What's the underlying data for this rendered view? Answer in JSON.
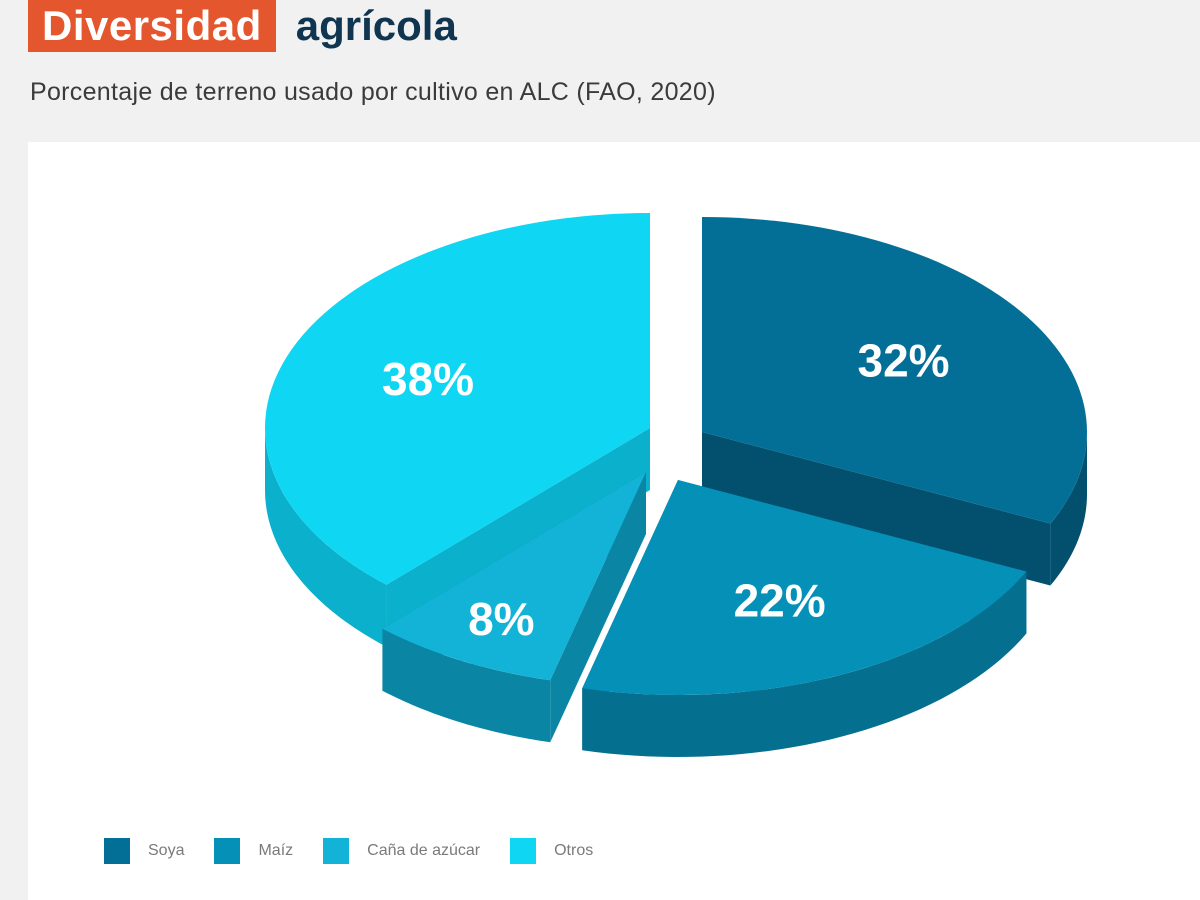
{
  "header": {
    "title_highlight": "Diversidad",
    "title_rest": "agrícola",
    "subtitle": "Porcentaje de terreno usado por cultivo en ALC (FAO, 2020)"
  },
  "colors": {
    "accent": "#e4572e",
    "title_text": "#0f3550"
  },
  "chart_data": {
    "type": "pie",
    "style": "3d-exploded",
    "title": "Diversidad agrícola",
    "subtitle": "Porcentaje de terreno usado por cultivo en ALC (FAO, 2020)",
    "legend_position": "bottom-left",
    "slices": [
      {
        "label": "Soya",
        "value": 32,
        "display": "32%",
        "color": "#036f97",
        "side_color": "#02506e"
      },
      {
        "label": "Maíz",
        "value": 22,
        "display": "22%",
        "color": "#0590b8",
        "side_color": "#046f8f"
      },
      {
        "label": "Caña de azúcar",
        "value": 8,
        "display": "8%",
        "color": "#13b2d7",
        "side_color": "#0a85a4"
      },
      {
        "label": "Otros",
        "value": 38,
        "display": "38%",
        "color": "#0fd6f2",
        "side_color": "#0ab0cc"
      }
    ]
  }
}
